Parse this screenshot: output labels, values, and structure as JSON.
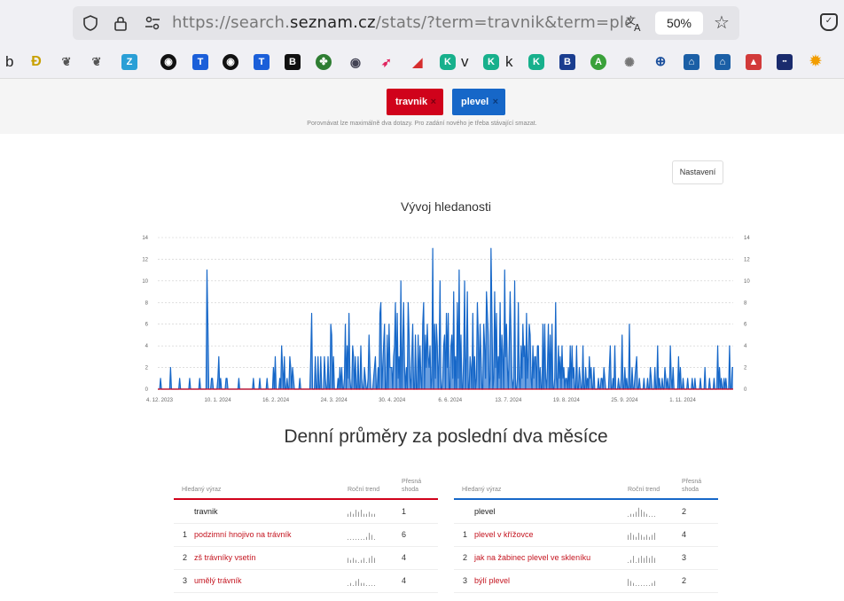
{
  "browser": {
    "url_host_prefix": "https://search.",
    "url_host_domain": "seznam.cz",
    "url_path": "/stats/?term=travnik&term=plevel",
    "zoom": "50%",
    "bookmarks_text": [
      "b",
      "v",
      "k"
    ]
  },
  "terms": {
    "term1": "travnik",
    "term2": "plevel",
    "remove": "×",
    "hint": "Porovnávat lze maximálně dva dotazy. Pro zadání nového je třeba stávající smazat.",
    "color1": "#d0021b",
    "color2": "#1667c8"
  },
  "settings_label": "Nastavení",
  "chart_title": "Vývoj hledanosti",
  "chart_data": {
    "type": "area",
    "title": "Vývoj hledanosti",
    "ylim": [
      0,
      14
    ],
    "yticks": [
      "0",
      "2",
      "4",
      "6",
      "8",
      "10",
      "12",
      "14"
    ],
    "xticks": [
      "4. 12. 2023",
      "10. 1. 2024",
      "16. 2. 2024",
      "24. 3. 2024",
      "30. 4. 2024",
      "6. 6. 2024",
      "13. 7. 2024",
      "19. 8. 2024",
      "25. 9. 2024",
      "1. 11. 2024"
    ],
    "grid": "horizontal dotted",
    "series": [
      {
        "color": "#1667c8",
        "values": [
          0,
          0,
          0,
          1,
          0,
          0,
          0,
          0,
          0,
          0,
          0,
          0,
          0,
          0,
          2,
          0,
          0,
          0,
          0,
          0,
          0,
          0,
          0,
          0,
          1,
          0,
          0,
          0,
          0,
          0,
          0,
          0,
          0,
          0,
          0,
          1,
          0,
          0,
          0,
          0,
          0,
          0,
          0,
          0,
          0,
          0,
          1,
          0,
          0,
          0,
          0,
          0,
          0,
          0,
          11,
          6,
          0,
          0,
          0,
          1,
          1,
          0,
          0,
          0,
          0,
          0,
          1,
          3,
          0,
          1,
          0,
          0,
          0,
          0,
          0,
          1,
          1,
          0,
          0,
          0,
          0,
          0,
          0,
          0,
          0,
          0,
          0,
          0,
          0,
          1,
          0,
          0,
          0,
          0,
          0,
          0,
          0,
          0,
          0,
          0,
          0,
          0,
          0,
          0,
          0,
          1,
          0,
          0,
          0,
          0,
          0,
          0,
          1,
          0,
          0,
          0,
          0,
          0,
          0,
          0,
          1,
          0,
          0,
          0,
          0,
          0,
          0,
          2,
          0,
          3,
          0,
          0,
          0,
          0,
          1,
          0,
          4,
          2,
          0,
          3,
          0,
          0,
          1,
          0,
          0,
          3,
          2,
          0,
          2,
          1,
          0,
          0,
          0,
          0,
          0,
          0,
          1,
          0,
          0,
          0,
          0,
          0,
          0,
          0,
          0,
          0,
          0,
          0,
          3,
          7,
          0,
          0,
          0,
          3,
          0,
          0,
          3,
          0,
          0,
          3,
          0,
          0,
          0,
          3,
          1,
          0,
          0,
          3,
          0,
          0,
          6,
          5,
          0,
          3,
          0,
          0,
          0,
          0,
          1,
          0,
          2,
          0,
          2,
          0,
          0,
          1,
          6,
          0,
          4,
          1,
          7,
          1,
          0,
          0,
          4,
          3,
          0,
          3,
          0,
          0,
          3,
          0,
          0,
          4,
          1,
          0,
          0,
          2,
          1,
          0,
          0,
          1,
          5,
          2,
          0,
          0,
          0,
          1,
          2,
          3,
          0,
          0,
          2,
          0,
          7,
          8,
          0,
          2,
          4,
          6,
          0,
          0,
          5,
          0,
          6,
          2,
          2,
          2,
          0,
          3,
          4,
          8,
          0,
          7,
          1,
          3,
          0,
          10,
          0,
          4,
          8,
          2,
          0,
          2,
          0,
          8,
          5,
          1,
          0,
          3,
          6,
          0,
          0,
          5,
          0,
          0,
          5,
          0,
          4,
          1,
          0,
          6,
          8,
          0,
          5,
          2,
          6,
          3,
          2,
          4,
          0,
          1,
          13,
          0,
          6,
          1,
          6,
          4,
          0,
          3,
          10,
          0,
          0,
          1,
          4,
          5,
          0,
          7,
          2,
          7,
          0,
          0,
          4,
          5,
          1,
          9,
          0,
          3,
          0,
          8,
          1,
          11,
          0,
          5,
          0,
          0,
          3,
          10,
          0,
          3,
          9,
          0,
          0,
          3,
          2,
          0,
          7,
          0,
          3,
          0,
          1,
          8,
          5,
          0,
          6,
          3,
          0,
          0,
          6,
          4,
          1,
          9,
          7,
          5,
          0,
          1,
          13,
          7,
          0,
          1,
          9,
          2,
          7,
          0,
          3,
          1,
          8,
          0,
          5,
          3,
          0,
          11,
          3,
          6,
          2,
          0,
          4,
          9,
          5,
          1,
          0,
          1,
          10,
          0,
          0,
          1,
          8,
          1,
          0,
          4,
          1,
          6,
          3,
          4,
          0,
          7,
          1,
          3,
          6,
          5,
          1,
          0,
          4,
          1,
          3,
          3,
          0,
          4,
          4,
          0,
          2,
          0,
          0,
          6,
          0,
          6,
          1,
          0,
          2,
          6,
          0,
          5,
          0,
          6,
          0,
          0,
          1,
          8,
          1,
          0,
          4,
          1,
          3,
          0,
          4,
          1,
          2,
          0,
          1,
          1,
          0,
          2,
          0,
          4,
          0,
          4,
          1,
          2,
          0,
          0,
          4,
          0,
          0,
          2,
          1,
          0,
          0,
          4,
          0,
          0,
          2,
          0,
          1,
          0,
          3,
          1,
          2,
          0,
          0,
          2,
          0,
          0,
          0,
          0,
          1,
          0,
          0,
          1,
          1,
          0,
          2,
          1,
          0,
          0,
          0,
          0,
          2,
          4,
          0,
          0,
          1,
          0,
          4,
          0,
          0,
          0,
          1,
          0,
          0,
          1,
          5,
          0,
          0,
          2,
          0,
          1,
          0,
          0,
          6,
          0,
          0,
          2,
          0,
          0,
          1,
          2,
          3,
          0,
          0,
          1,
          0,
          0,
          0,
          0,
          1,
          0,
          0,
          0,
          1,
          0,
          0,
          2,
          1,
          0,
          0,
          0,
          2,
          0,
          0,
          4,
          0,
          1,
          0,
          0,
          1,
          0,
          0,
          2,
          1,
          0,
          1,
          0,
          0,
          4,
          1,
          0,
          2,
          0,
          0,
          0,
          0,
          0,
          3,
          0,
          2,
          0,
          0,
          1,
          0,
          0,
          0,
          0,
          1,
          0,
          0,
          0,
          0,
          1,
          0,
          0,
          1,
          0,
          0,
          0,
          0,
          0,
          1,
          0,
          0,
          0,
          0,
          2,
          0,
          0,
          0,
          0,
          1,
          0,
          0,
          0,
          0,
          1,
          0,
          0,
          0,
          4,
          0,
          2,
          0,
          1,
          0,
          0,
          1,
          0,
          1,
          0,
          0,
          0,
          4,
          0,
          0,
          2,
          2
        ]
      },
      {
        "color": "#d0021b",
        "values": [
          0
        ]
      }
    ]
  },
  "section_title": "Denní průměry za poslední dva měsíce",
  "table_headers": {
    "term": "Hledaný výraz",
    "trend": "Roční trend",
    "exact": "Přesná shoda"
  },
  "left_table": {
    "main": {
      "term": "travnik",
      "value": "1"
    },
    "rows": [
      {
        "num": "1",
        "term": "podzimní hnojivo na trávník",
        "value": "6"
      },
      {
        "num": "2",
        "term": "zš trávníky vsetín",
        "value": "4"
      },
      {
        "num": "3",
        "term": "umělý trávník",
        "value": "4"
      }
    ]
  },
  "right_table": {
    "main": {
      "term": "plevel",
      "value": "2"
    },
    "rows": [
      {
        "num": "1",
        "term": "plevel v křížovce",
        "value": "4"
      },
      {
        "num": "2",
        "term": "jak na žabinec plevel ve skleníku",
        "value": "3"
      },
      {
        "num": "3",
        "term": "býlí plevel",
        "value": "2"
      }
    ]
  }
}
